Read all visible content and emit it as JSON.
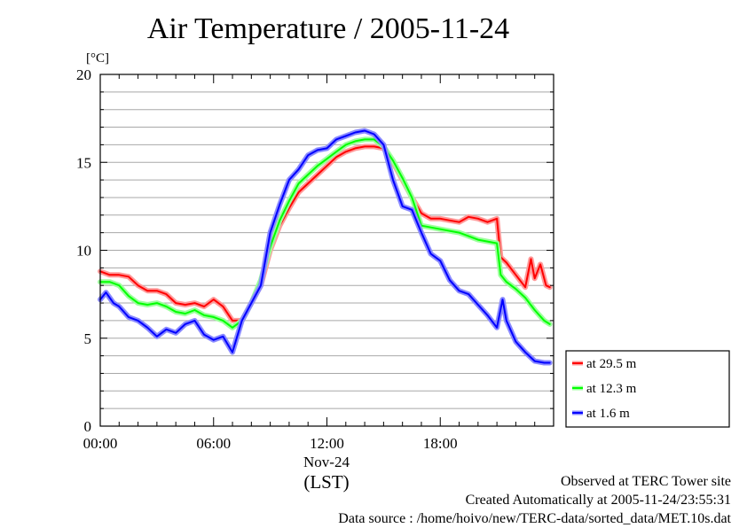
{
  "chart_data": {
    "type": "line",
    "title": "Air Temperature / 2005-11-24",
    "ylabel": "[°C]",
    "xlabel": "(LST)",
    "x_date_label": "Nov-24",
    "ylim": [
      0,
      20
    ],
    "yticks": [
      0,
      5,
      10,
      15,
      20
    ],
    "xlim_hours": [
      0,
      24
    ],
    "xticks": [
      {
        "hour": 0,
        "label": "00:00"
      },
      {
        "hour": 6,
        "label": "06:00"
      },
      {
        "hour": 12,
        "label": "12:00"
      },
      {
        "hour": 18,
        "label": "18:00"
      }
    ],
    "grid": "horizontal",
    "legend_position": "right",
    "series": [
      {
        "name": "at 29.5 m",
        "color": "#ff0000",
        "points": [
          [
            0,
            8.8
          ],
          [
            0.5,
            8.6
          ],
          [
            1,
            8.6
          ],
          [
            1.5,
            8.5
          ],
          [
            2,
            8.0
          ],
          [
            2.5,
            7.7
          ],
          [
            3,
            7.7
          ],
          [
            3.5,
            7.5
          ],
          [
            4,
            7.0
          ],
          [
            4.5,
            6.9
          ],
          [
            5,
            7.0
          ],
          [
            5.5,
            6.8
          ],
          [
            6,
            7.2
          ],
          [
            6.5,
            6.8
          ],
          [
            7,
            6.0
          ],
          [
            7.5,
            6.0
          ],
          [
            8,
            7.0
          ],
          [
            8.5,
            8.0
          ],
          [
            9,
            10.0
          ],
          [
            9.5,
            11.4
          ],
          [
            10,
            12.4
          ],
          [
            10.5,
            13.3
          ],
          [
            11,
            13.8
          ],
          [
            11.5,
            14.3
          ],
          [
            12,
            14.8
          ],
          [
            12.5,
            15.3
          ],
          [
            13,
            15.6
          ],
          [
            13.5,
            15.8
          ],
          [
            14,
            15.9
          ],
          [
            14.5,
            15.9
          ],
          [
            15,
            15.8
          ],
          [
            15.5,
            15.0
          ],
          [
            16,
            14.0
          ],
          [
            16.5,
            13.0
          ],
          [
            17,
            12.1
          ],
          [
            17.5,
            11.8
          ],
          [
            18,
            11.8
          ],
          [
            18.5,
            11.7
          ],
          [
            19,
            11.6
          ],
          [
            19.5,
            11.9
          ],
          [
            20,
            11.8
          ],
          [
            20.5,
            11.6
          ],
          [
            21,
            11.8
          ],
          [
            21.2,
            9.6
          ],
          [
            21.5,
            9.3
          ],
          [
            22,
            8.6
          ],
          [
            22.5,
            7.9
          ],
          [
            22.8,
            9.5
          ],
          [
            23,
            8.4
          ],
          [
            23.3,
            9.2
          ],
          [
            23.6,
            8.0
          ],
          [
            23.8,
            7.9
          ]
        ]
      },
      {
        "name": "at 12.3 m",
        "color": "#00ff00",
        "points": [
          [
            0,
            8.2
          ],
          [
            0.5,
            8.2
          ],
          [
            1,
            8.0
          ],
          [
            1.5,
            7.4
          ],
          [
            2,
            7.0
          ],
          [
            2.5,
            6.9
          ],
          [
            3,
            7.0
          ],
          [
            3.5,
            6.8
          ],
          [
            4,
            6.5
          ],
          [
            4.5,
            6.4
          ],
          [
            5,
            6.6
          ],
          [
            5.5,
            6.3
          ],
          [
            6,
            6.2
          ],
          [
            6.5,
            6.0
          ],
          [
            7,
            5.6
          ],
          [
            7.5,
            6.0
          ],
          [
            8,
            7.0
          ],
          [
            8.5,
            8.3
          ],
          [
            9,
            10.2
          ],
          [
            9.5,
            11.7
          ],
          [
            10,
            12.8
          ],
          [
            10.5,
            13.8
          ],
          [
            11,
            14.3
          ],
          [
            11.5,
            14.8
          ],
          [
            12,
            15.2
          ],
          [
            12.5,
            15.6
          ],
          [
            13,
            16.0
          ],
          [
            13.5,
            16.2
          ],
          [
            14,
            16.3
          ],
          [
            14.5,
            16.3
          ],
          [
            15,
            15.9
          ],
          [
            15.5,
            15.1
          ],
          [
            16,
            14.1
          ],
          [
            16.5,
            13.0
          ],
          [
            17,
            11.4
          ],
          [
            17.5,
            11.3
          ],
          [
            18,
            11.2
          ],
          [
            18.5,
            11.1
          ],
          [
            19,
            11.0
          ],
          [
            19.5,
            10.8
          ],
          [
            20,
            10.6
          ],
          [
            20.5,
            10.5
          ],
          [
            21,
            10.4
          ],
          [
            21.2,
            8.6
          ],
          [
            21.5,
            8.2
          ],
          [
            22,
            7.8
          ],
          [
            22.5,
            7.3
          ],
          [
            23,
            6.6
          ],
          [
            23.5,
            6.0
          ],
          [
            23.8,
            5.8
          ]
        ]
      },
      {
        "name": "at 1.6 m",
        "color": "#0000ff",
        "points": [
          [
            0,
            7.2
          ],
          [
            0.3,
            7.6
          ],
          [
            0.7,
            7.0
          ],
          [
            1,
            6.8
          ],
          [
            1.5,
            6.2
          ],
          [
            2,
            6.0
          ],
          [
            2.5,
            5.6
          ],
          [
            3,
            5.1
          ],
          [
            3.5,
            5.5
          ],
          [
            4,
            5.3
          ],
          [
            4.5,
            5.8
          ],
          [
            5,
            6.0
          ],
          [
            5.5,
            5.2
          ],
          [
            6,
            4.9
          ],
          [
            6.5,
            5.1
          ],
          [
            7,
            4.2
          ],
          [
            7.5,
            6.0
          ],
          [
            8,
            7.0
          ],
          [
            8.5,
            8.0
          ],
          [
            9,
            11.0
          ],
          [
            9.5,
            12.6
          ],
          [
            10,
            14.0
          ],
          [
            10.5,
            14.6
          ],
          [
            11,
            15.4
          ],
          [
            11.5,
            15.7
          ],
          [
            12,
            15.8
          ],
          [
            12.5,
            16.3
          ],
          [
            13,
            16.5
          ],
          [
            13.5,
            16.7
          ],
          [
            14,
            16.8
          ],
          [
            14.5,
            16.6
          ],
          [
            15,
            16.0
          ],
          [
            15.5,
            14.0
          ],
          [
            16,
            12.5
          ],
          [
            16.5,
            12.3
          ],
          [
            17,
            11.0
          ],
          [
            17.5,
            9.8
          ],
          [
            18,
            9.4
          ],
          [
            18.5,
            8.3
          ],
          [
            19,
            7.7
          ],
          [
            19.5,
            7.5
          ],
          [
            20,
            6.9
          ],
          [
            20.5,
            6.3
          ],
          [
            21,
            5.6
          ],
          [
            21.3,
            7.2
          ],
          [
            21.5,
            6.0
          ],
          [
            22,
            4.8
          ],
          [
            22.5,
            4.2
          ],
          [
            23,
            3.7
          ],
          [
            23.5,
            3.6
          ],
          [
            23.8,
            3.6
          ]
        ]
      }
    ]
  },
  "footer": {
    "site": "Observed at TERC Tower site",
    "created": "Created Automatically at 2005-11-24/23:55:31",
    "source": "Data source : /home/hoivo/new/TERC-data/sorted_data/MET.10s.dat"
  }
}
